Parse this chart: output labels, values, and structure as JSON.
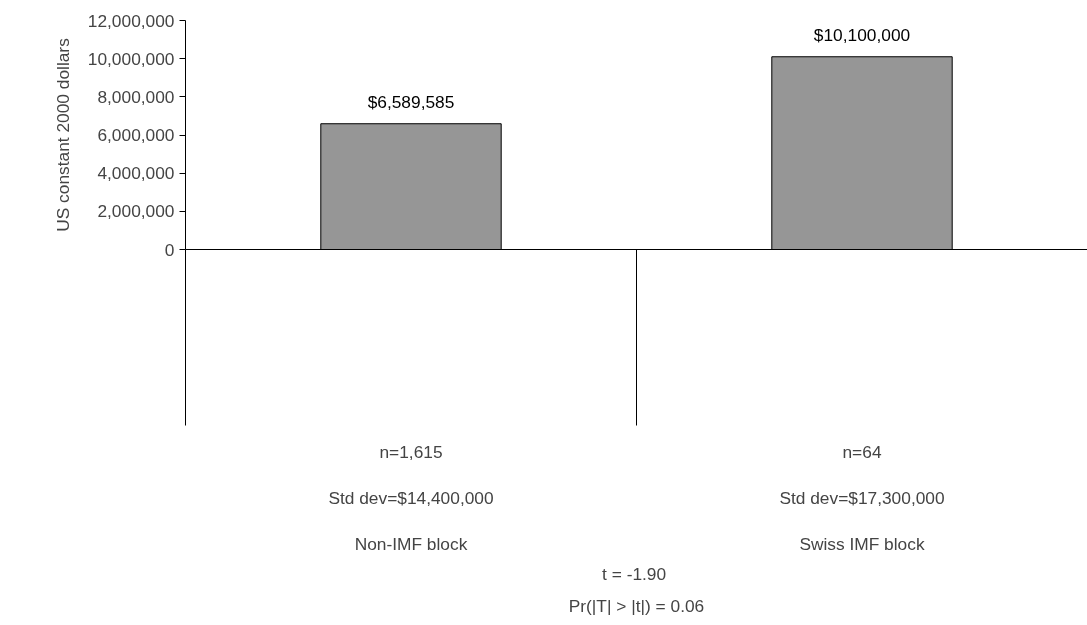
{
  "chart_data": {
    "type": "bar",
    "ylabel": "US constant 2000 dollars",
    "categories": [
      "n=1,615\nStd dev=$14,400,000\nNon-IMF block",
      "n=64\nStd dev=$17,300,000\nSwiss IMF block"
    ],
    "values": [
      6589585,
      10100000
    ],
    "color": "#969696",
    "value_labels": [
      "$6,589,585",
      "$10,100,000"
    ],
    "ylim": [
      0,
      12000000
    ],
    "yticks": [
      {
        "value": 0,
        "label": "0"
      },
      {
        "value": 2000000,
        "label": "2,000,000"
      },
      {
        "value": 4000000,
        "label": "4,000,000"
      },
      {
        "value": 6000000,
        "label": "6,000,000"
      },
      {
        "value": 8000000,
        "label": "8,000,000"
      },
      {
        "value": 10000000,
        "label": "10,000,000"
      },
      {
        "value": 12000000,
        "label": "12,000,000"
      }
    ],
    "grid": false,
    "annotations": [
      "t =  -1.90",
      "Pr(|T| > |t|) = 0.06"
    ]
  }
}
